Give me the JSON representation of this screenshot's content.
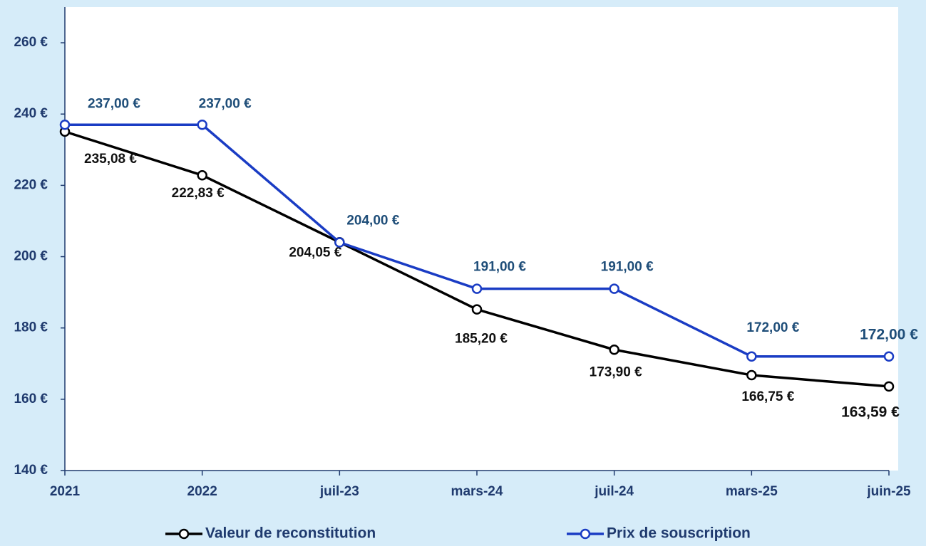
{
  "chart_data": {
    "type": "line",
    "categories": [
      "2021",
      "2022",
      "juil-23",
      "mars-24",
      "juil-24",
      "mars-25",
      "juin-25"
    ],
    "series": [
      {
        "name": "Valeur de reconstitution",
        "color": "#000000",
        "values": [
          235.08,
          222.83,
          204.05,
          185.2,
          173.9,
          166.75,
          163.59
        ],
        "value_labels": [
          "235,08 €",
          "222,83 €",
          "204,05 €",
          "185,20 €",
          "173,90 €",
          "166,75 €",
          "163,59 €"
        ]
      },
      {
        "name": "Prix de souscription",
        "color": "#1a3cc4",
        "values": [
          237,
          237,
          204,
          191,
          191,
          172,
          172
        ],
        "value_labels": [
          "237,00 €",
          "237,00 €",
          "204,00 €",
          "191,00 €",
          "191,00 €",
          "172,00 €",
          "172,00 €"
        ]
      }
    ],
    "ylim": [
      140,
      270
    ],
    "yticks": [
      {
        "value": 140,
        "label": "140 €"
      },
      {
        "value": 160,
        "label": "160 €"
      },
      {
        "value": 180,
        "label": "180 €"
      },
      {
        "value": 200,
        "label": "200 €"
      },
      {
        "value": 220,
        "label": "220 €"
      },
      {
        "value": 240,
        "label": "240 €"
      },
      {
        "value": 260,
        "label": "260 €"
      }
    ],
    "grid": false,
    "legend": "bottom"
  }
}
